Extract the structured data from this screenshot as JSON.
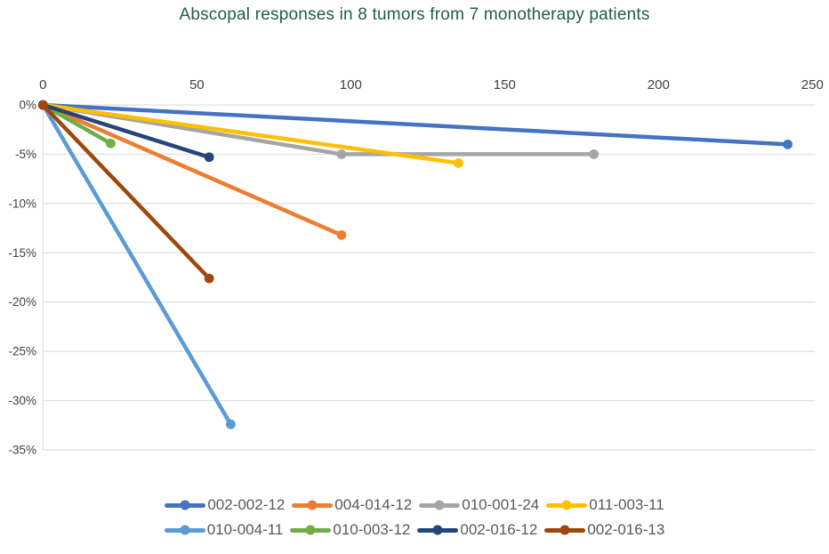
{
  "chart_data": {
    "type": "line",
    "title": "Abscopal responses in 8 tumors from 7 monotherapy patients",
    "title_color": "#235C4B",
    "xlabel": "",
    "ylabel": "",
    "x_axis": {
      "position": "top",
      "range": [
        0,
        250
      ],
      "ticks": [
        0,
        50,
        100,
        150,
        200,
        250
      ],
      "label_color": "#404040"
    },
    "y_axis": {
      "position": "left",
      "range": [
        0,
        -35
      ],
      "tick_values": [
        0,
        -5,
        -10,
        -15,
        -20,
        -25,
        -30,
        -35
      ],
      "tick_labels": [
        "0%",
        "-5%",
        "-10%",
        "-15%",
        "-20%",
        "-25%",
        "-30%",
        "-35%"
      ],
      "label_color": "#404040"
    },
    "grid": true,
    "gridline_color": "#D9D9D9",
    "axis_line_color": "#D9D9D9",
    "marker_style": "circle",
    "legend_position": "bottom",
    "legend_text_color": "#595959",
    "legend_items_per_row": 4,
    "series": [
      {
        "name": "002-002-12",
        "color": "#4472C4",
        "points": [
          [
            0,
            0
          ],
          [
            242,
            -4.0
          ]
        ]
      },
      {
        "name": "004-014-12",
        "color": "#ED7D31",
        "points": [
          [
            0,
            0
          ],
          [
            97,
            -13.2
          ]
        ]
      },
      {
        "name": "010-001-24",
        "color": "#A5A5A5",
        "points": [
          [
            0,
            0
          ],
          [
            97,
            -5.0
          ],
          [
            179,
            -5.0
          ]
        ]
      },
      {
        "name": "011-003-11",
        "color": "#FFC000",
        "points": [
          [
            0,
            0
          ],
          [
            135,
            -5.9
          ]
        ]
      },
      {
        "name": "010-004-11",
        "color": "#5B9BD5",
        "points": [
          [
            0,
            0
          ],
          [
            61,
            -32.4
          ]
        ]
      },
      {
        "name": "010-003-12",
        "color": "#70AD47",
        "points": [
          [
            0,
            0
          ],
          [
            22,
            -3.9
          ]
        ]
      },
      {
        "name": "002-016-12",
        "color": "#264478",
        "points": [
          [
            0,
            0
          ],
          [
            54,
            -5.3
          ]
        ]
      },
      {
        "name": "002-016-13",
        "color": "#9E480E",
        "points": [
          [
            0,
            0
          ],
          [
            54,
            -17.6
          ]
        ]
      }
    ]
  }
}
